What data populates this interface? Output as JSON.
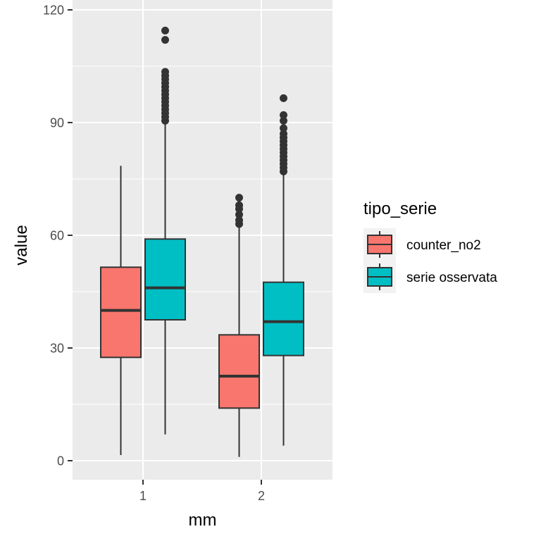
{
  "chart_data": {
    "type": "boxplot",
    "xlabel": "mm",
    "ylabel": "value",
    "ylim": [
      -4,
      120
    ],
    "yticks": [
      0,
      30,
      60,
      90,
      120
    ],
    "categories": [
      "1",
      "2"
    ],
    "legend": {
      "title": "tipo_serie",
      "placement": "right"
    },
    "grid": true,
    "series": [
      {
        "name": "counter_no2",
        "color": "#F8766D",
        "boxes": [
          {
            "category": "1",
            "whisker_low": 1.5,
            "q1": 27.5,
            "median": 40,
            "q3": 51.5,
            "whisker_high": 78.5,
            "outliers": []
          },
          {
            "category": "2",
            "whisker_low": 1,
            "q1": 14,
            "median": 22.5,
            "q3": 33.5,
            "whisker_high": 62.5,
            "outliers": [
              63,
              64,
              65.5,
              67,
              68,
              70
            ]
          }
        ]
      },
      {
        "name": "serie osservata",
        "color": "#00BFC4",
        "boxes": [
          {
            "category": "1",
            "whisker_low": 7,
            "q1": 37.5,
            "median": 46,
            "q3": 59,
            "whisker_high": 90,
            "outliers": [
              90.5,
              91.5,
              92.5,
              93.5,
              94.5,
              95.5,
              96.5,
              97.5,
              98.5,
              99.5,
              100.5,
              101.5,
              102.5,
              103.5,
              112,
              114.5
            ]
          },
          {
            "category": "2",
            "whisker_low": 4,
            "q1": 28,
            "median": 37,
            "q3": 47.5,
            "whisker_high": 76.5,
            "outliers": [
              77,
              78,
              79,
              80,
              81,
              82,
              83,
              84,
              85,
              86,
              87,
              88.5,
              90.5,
              92,
              96.5
            ]
          }
        ]
      }
    ]
  }
}
